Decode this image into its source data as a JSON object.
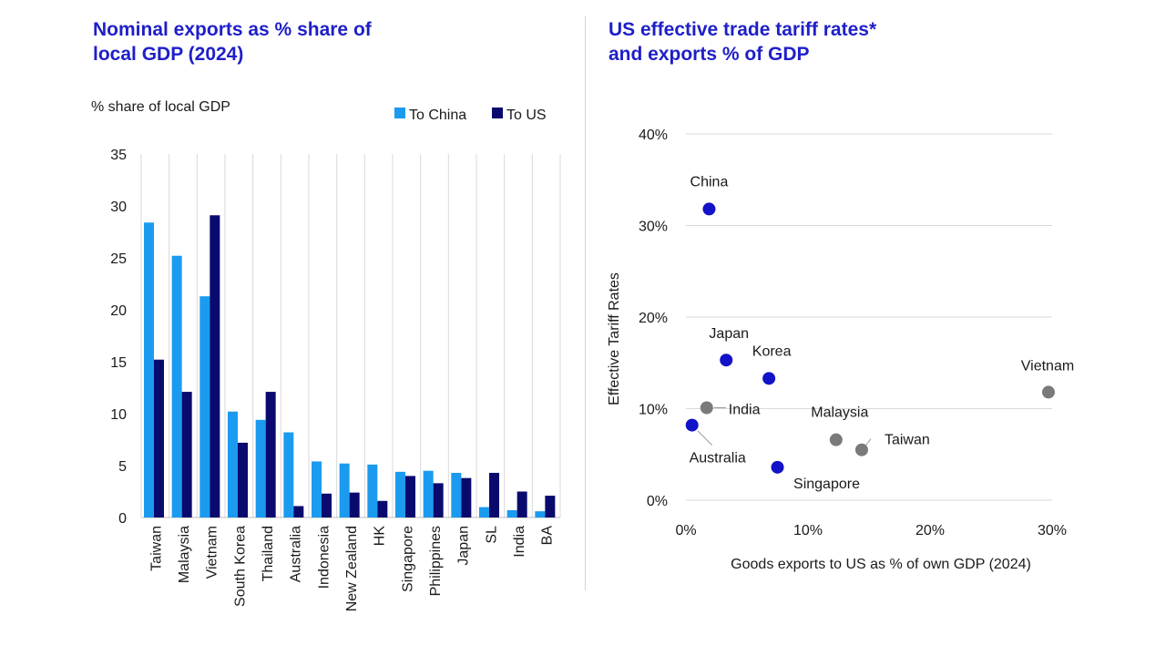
{
  "left_chart": {
    "title_line1": "Nominal exports as % share of",
    "title_line2": "local GDP (2024)"
  },
  "right_chart": {
    "title_line1": "US effective trade tariff rates*",
    "title_line2": "and exports % of GDP"
  },
  "colors": {
    "title": "#1f1fc8",
    "to_china": "#1b9bef",
    "to_us": "#0a0a6e",
    "highlight_point": "#1212c8",
    "grey_point": "#7a7a7a",
    "grid": "#d9d9d9"
  },
  "chart_data": [
    {
      "type": "bar",
      "title": "Nominal exports as % share of local GDP (2024)",
      "ylabel": "% share of local GDP",
      "xlabel": "",
      "ylim": [
        0,
        35
      ],
      "yticks": [
        "0",
        "5",
        "10",
        "15",
        "20",
        "25",
        "30",
        "35"
      ],
      "ytick_values": [
        0,
        5,
        10,
        15,
        20,
        25,
        30,
        35
      ],
      "gridlines": "vertical separators between categories",
      "legend_position": "top-right",
      "categories": [
        "Taiwan",
        "Malaysia",
        "Vietnam",
        "South Korea",
        "Thailand",
        "Australia",
        "Indonesia",
        "New Zealand",
        "HK",
        "Singapore",
        "Philippines",
        "Japan",
        "SL",
        "India",
        "BA"
      ],
      "series": [
        {
          "name": "To China",
          "values": [
            28.4,
            25.2,
            21.3,
            10.2,
            9.4,
            8.2,
            5.4,
            5.2,
            5.1,
            4.4,
            4.5,
            4.3,
            1.0,
            0.7,
            0.6
          ]
        },
        {
          "name": "To US",
          "values": [
            15.2,
            12.1,
            29.1,
            7.2,
            12.1,
            1.1,
            2.3,
            2.4,
            1.6,
            4.0,
            3.3,
            3.8,
            4.3,
            2.5,
            2.1
          ]
        }
      ]
    },
    {
      "type": "scatter",
      "title": "US effective trade tariff rates* and exports % of GDP",
      "xlabel": "Goods exports to US as % of own GDP (2024)",
      "ylabel": "Effective Tariff Rates",
      "xlim": [
        0,
        30
      ],
      "ylim": [
        0,
        40
      ],
      "xticks": [
        "0%",
        "10%",
        "20%",
        "30%"
      ],
      "xtick_values": [
        0,
        10,
        20,
        30
      ],
      "yticks": [
        "0%",
        "10%",
        "20%",
        "30%",
        "40%"
      ],
      "ytick_values": [
        0,
        10,
        20,
        30,
        40
      ],
      "grid": "horizontal",
      "points": [
        {
          "label": "China",
          "x": 1.9,
          "y": 31.8,
          "group": "highlight"
        },
        {
          "label": "Japan",
          "x": 3.3,
          "y": 15.3,
          "group": "highlight"
        },
        {
          "label": "Korea",
          "x": 6.8,
          "y": 13.3,
          "group": "highlight"
        },
        {
          "label": "Australia",
          "x": 0.5,
          "y": 8.2,
          "group": "highlight"
        },
        {
          "label": "Singapore",
          "x": 7.5,
          "y": 3.6,
          "group": "highlight"
        },
        {
          "label": "India",
          "x": 1.7,
          "y": 10.1,
          "group": "grey"
        },
        {
          "label": "Malaysia",
          "x": 12.3,
          "y": 6.6,
          "group": "grey"
        },
        {
          "label": "Taiwan",
          "x": 14.4,
          "y": 5.5,
          "group": "grey"
        },
        {
          "label": "Vietnam",
          "x": 29.7,
          "y": 11.8,
          "group": "grey"
        }
      ]
    }
  ]
}
